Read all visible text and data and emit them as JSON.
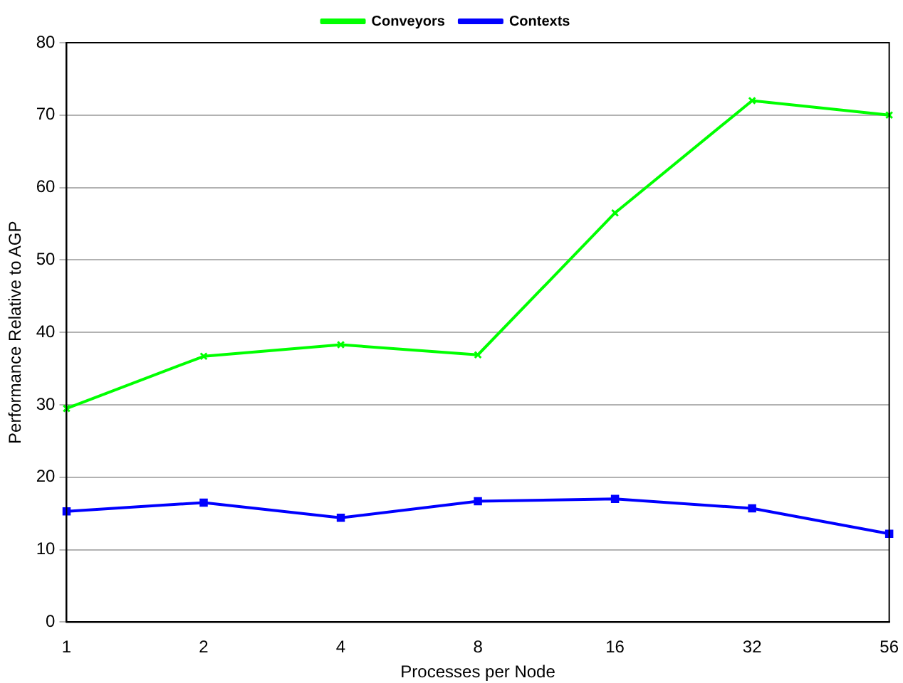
{
  "chart_data": {
    "type": "line",
    "xlabel": "Processes per Node",
    "ylabel": "Performance Relative to AGP",
    "categories": [
      "1",
      "2",
      "4",
      "8",
      "16",
      "32",
      "56"
    ],
    "series": [
      {
        "name": "Conveyors",
        "color": "#00ff00",
        "marker": "cross",
        "values": [
          29.5,
          36.7,
          38.3,
          36.9,
          56.5,
          72.0,
          70.0
        ]
      },
      {
        "name": "Contexts",
        "color": "#0000ff",
        "marker": "square",
        "values": [
          15.3,
          16.5,
          14.4,
          16.7,
          17.0,
          15.7,
          12.2
        ]
      }
    ],
    "ylim": [
      0,
      80
    ],
    "yticks": [
      0,
      10,
      20,
      30,
      40,
      50,
      60,
      70,
      80
    ],
    "grid": "y",
    "legend": "top",
    "line_style": "solid"
  }
}
